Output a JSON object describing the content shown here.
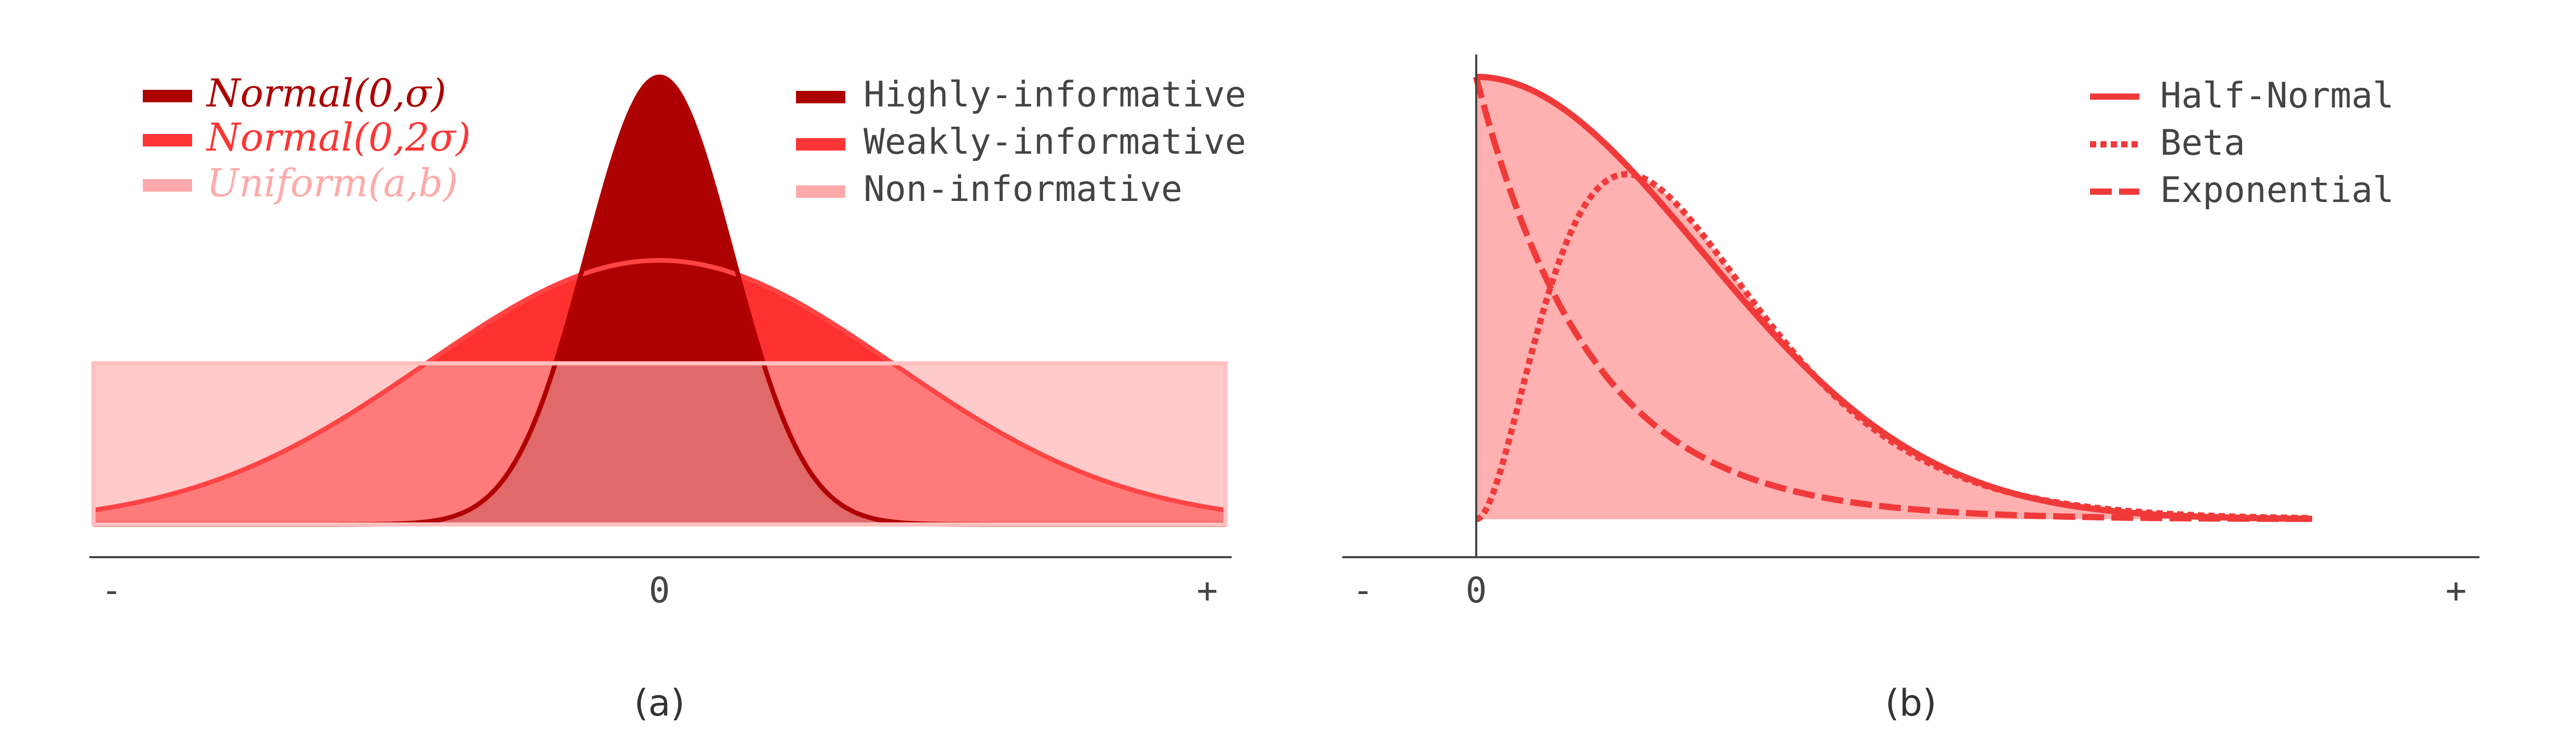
{
  "chart_data": [
    {
      "panel": "(a)",
      "type": "area",
      "xticks": [
        "-",
        "0",
        "+"
      ],
      "xlim": [
        -3.5,
        3.5
      ],
      "ylim": [
        0,
        1.0
      ],
      "grid": false,
      "legend_left_position": "top-left",
      "legend_right_position": "top-right",
      "series": [
        {
          "name": "Normal(0, σ)",
          "role": "Highly-informative",
          "distribution": "normal",
          "mean": 0,
          "sd": 0.45,
          "peak": 1.0,
          "color": "#ad0000"
        },
        {
          "name": "Normal(0, 2σ)",
          "role": "Weakly-informative",
          "distribution": "normal",
          "mean": 0,
          "sd": 1.45,
          "peak": 0.59,
          "color": "#ff3030"
        },
        {
          "name": "Uniform(a, b)",
          "role": "Non-informative",
          "distribution": "uniform",
          "low": -3.5,
          "high": 3.5,
          "height": 0.36,
          "color": "#ffaaaa"
        }
      ],
      "legend_left": [
        {
          "label": "Normal(0,σ)",
          "color": "#ad0000"
        },
        {
          "label": "Normal(0,2σ)",
          "color": "#ff3535"
        },
        {
          "label": "Uniform(a,b)",
          "color": "#ffaaaa"
        }
      ],
      "legend_right": [
        {
          "label": "Highly-informative",
          "color": "#ad0000"
        },
        {
          "label": "Weakly-informative",
          "color": "#ff3535"
        },
        {
          "label": "Non-informative",
          "color": "#ffaaaa"
        }
      ]
    },
    {
      "panel": "(b)",
      "type": "line",
      "xticks": [
        "-",
        "0",
        "+"
      ],
      "xlim": [
        -0.8,
        6.0
      ],
      "ylim": [
        0,
        1.0
      ],
      "grid": false,
      "legend_position": "top-right",
      "series": [
        {
          "name": "Half-Normal",
          "style": "solid",
          "distribution": "half-normal",
          "sd": 1.0,
          "peak": 1.0,
          "color": "#f03a3a"
        },
        {
          "name": "Beta",
          "style": "dotted",
          "distribution": "gamma-like",
          "shape": 3.0,
          "scale": 0.45,
          "peak": 0.78,
          "color": "#f03a3a"
        },
        {
          "name": "Exponential",
          "style": "dashed",
          "distribution": "exponential",
          "rate": 1.0,
          "peak": 1.0,
          "color": "#f03a3a"
        }
      ],
      "fill_color": "#ffb0b0"
    }
  ],
  "captions": [
    "(a)",
    "(b)"
  ]
}
